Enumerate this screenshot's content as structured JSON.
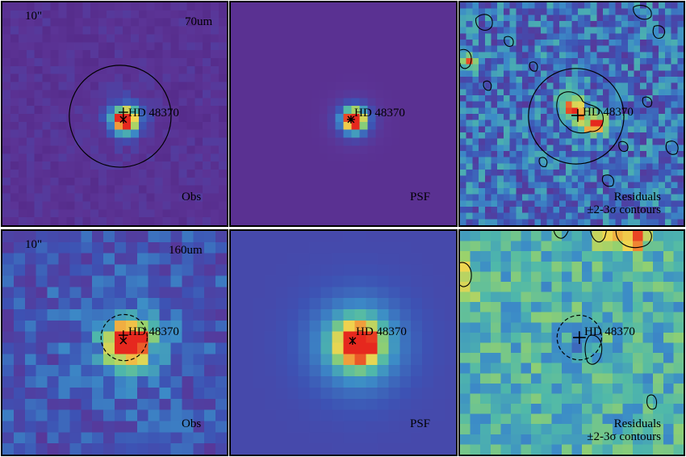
{
  "target_name": "HD 48370",
  "scale_bar_label": "10\"",
  "panels": [
    {
      "id": "obs70",
      "band": "70um",
      "corner": "Obs",
      "residual_lines": []
    },
    {
      "id": "psf70",
      "band": "",
      "corner": "PSF",
      "residual_lines": []
    },
    {
      "id": "res70",
      "band": "",
      "corner": "",
      "residual_lines": [
        "Residuals",
        "±2-3σ contours"
      ]
    },
    {
      "id": "obs160",
      "band": "160um",
      "corner": "Obs",
      "residual_lines": []
    },
    {
      "id": "psf160",
      "band": "",
      "corner": "PSF",
      "residual_lines": []
    },
    {
      "id": "res160",
      "band": "",
      "corner": "",
      "residual_lines": [
        "Residuals",
        "±2-3σ contours"
      ]
    }
  ],
  "row1": {
    "obs_band": "70um",
    "obs_label": "Obs",
    "psf_label": "PSF",
    "res_line1": "Residuals",
    "res_line2": "±2-3σ contours"
  },
  "row2": {
    "obs_band": "160um",
    "obs_label": "Obs",
    "psf_label": "PSF",
    "res_line1": "Residuals",
    "res_line2": "±2-3σ contours"
  },
  "colors": {
    "background_purple": "#5b2b8c",
    "psf_bg": "#4b2d8f",
    "core_red": "#e63a1f",
    "yellow": "#f2d24a",
    "residual_mid": "#4aa6a0"
  }
}
